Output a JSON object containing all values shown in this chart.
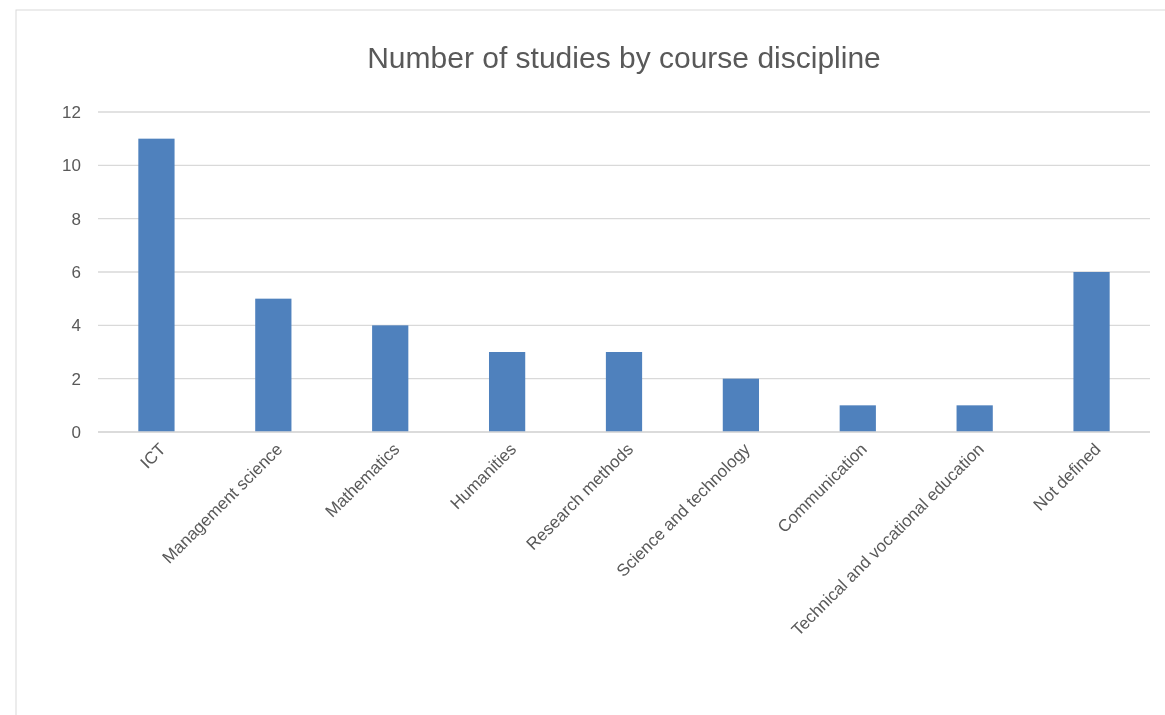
{
  "chart_data": {
    "type": "bar",
    "title": "Number of studies by course discipline",
    "categories": [
      "ICT",
      "Management science",
      "Mathematics",
      "Humanities",
      "Research methods",
      "Science and technology",
      "Communication",
      "Technical and vocational education",
      "Not defined"
    ],
    "values": [
      11,
      5,
      4,
      3,
      3,
      2,
      1,
      1,
      6
    ],
    "color": "#4f81bd",
    "ylim": [
      0,
      12
    ],
    "yticks": [
      0,
      2,
      4,
      6,
      8,
      10,
      12
    ],
    "grid": "y"
  }
}
